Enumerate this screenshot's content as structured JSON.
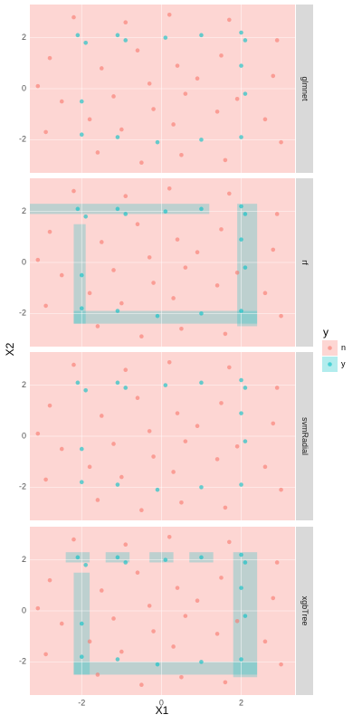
{
  "chart_data": [
    {
      "type": "scatter",
      "title": "glmnet",
      "xlim": [
        -3.3,
        3.35
      ],
      "ylim": [
        -3.3,
        3.3
      ],
      "xticks": [
        -2,
        0,
        2
      ],
      "yticks": [
        -2,
        0,
        2
      ],
      "grid": true,
      "series": [
        {
          "name": "n",
          "color": "#F8766D",
          "x": [
            -2.8,
            -1.5,
            -0.6,
            0.4,
            1.5,
            2.8,
            -2.5,
            -1.2,
            -0.2,
            0.6,
            1.4,
            2.6,
            -2.9,
            -1.6,
            -0.5,
            0.5,
            1.6,
            3.0,
            -0.9,
            0.2,
            1.7,
            -2.2,
            -0.3,
            0.9,
            -1.8,
            1.9,
            -1.0,
            0.3,
            2.9,
            -3.1
          ],
          "values": [
            1.2,
            0.8,
            1.5,
            0.9,
            1.3,
            0.5,
            -0.5,
            -0.3,
            -0.8,
            -0.2,
            -0.9,
            -1.2,
            -1.7,
            -2.5,
            -2.9,
            -2.6,
            -2.8,
            -2.1,
            2.6,
            2.9,
            2.7,
            2.8,
            0.2,
            0.4,
            -1.2,
            -0.4,
            -1.6,
            -1.4,
            1.9,
            0.1
          ]
        },
        {
          "name": "y",
          "color": "#00BFC4",
          "x": [
            -2.1,
            -1.9,
            -1.1,
            -0.9,
            0.1,
            1.0,
            2.0,
            2.1,
            2.0,
            2.1,
            2.0,
            1.0,
            -0.1,
            -1.1,
            -2.0,
            -2.0
          ],
          "values": [
            2.1,
            1.8,
            2.1,
            1.9,
            2.0,
            2.1,
            2.2,
            1.9,
            0.9,
            -0.2,
            -1.9,
            -2.0,
            -2.1,
            -1.9,
            -1.8,
            -0.5
          ]
        }
      ]
    },
    {
      "type": "scatter",
      "title": "rf",
      "xlim": [
        -3.3,
        3.35
      ],
      "ylim": [
        -3.3,
        3.3
      ],
      "xticks": [
        -2,
        0,
        2
      ],
      "yticks": [
        -2,
        0,
        2
      ],
      "grid": true,
      "regions": [
        {
          "x": [
            -3.3,
            1.2
          ],
          "y": [
            1.9,
            2.3
          ]
        },
        {
          "x": [
            1.9,
            2.4
          ],
          "y": [
            -2.5,
            2.3
          ]
        },
        {
          "x": [
            -2.2,
            2.4
          ],
          "y": [
            -2.4,
            -1.9
          ]
        },
        {
          "x": [
            -2.2,
            -1.9
          ],
          "y": [
            -2.4,
            1.5
          ]
        }
      ],
      "series": [
        {
          "name": "n",
          "color": "#F8766D",
          "x": [
            -2.8,
            -1.5,
            -0.6,
            0.4,
            1.5,
            2.8,
            -2.5,
            -1.2,
            -0.2,
            0.6,
            1.4,
            2.6,
            -2.9,
            -1.6,
            -0.5,
            0.5,
            1.6,
            3.0,
            -0.9,
            0.2,
            1.7,
            -2.2,
            -0.3,
            0.9,
            -1.8,
            1.9,
            -1.0,
            0.3,
            2.9,
            -3.1
          ],
          "values": [
            1.2,
            0.8,
            1.5,
            0.9,
            1.3,
            0.5,
            -0.5,
            -0.3,
            -0.8,
            -0.2,
            -0.9,
            -1.2,
            -1.7,
            -2.5,
            -2.9,
            -2.6,
            -2.8,
            -2.1,
            2.6,
            2.9,
            2.7,
            2.8,
            0.2,
            0.4,
            -1.2,
            -0.4,
            -1.6,
            -1.4,
            1.9,
            0.1
          ]
        },
        {
          "name": "y",
          "color": "#00BFC4",
          "x": [
            -2.1,
            -1.9,
            -1.1,
            -0.9,
            0.1,
            1.0,
            2.0,
            2.1,
            2.0,
            2.1,
            2.0,
            1.0,
            -0.1,
            -1.1,
            -2.0,
            -2.0
          ],
          "values": [
            2.1,
            1.8,
            2.1,
            1.9,
            2.0,
            2.1,
            2.2,
            1.9,
            0.9,
            -0.2,
            -1.9,
            -2.0,
            -2.1,
            -1.9,
            -1.8,
            -0.5
          ]
        }
      ]
    },
    {
      "type": "scatter",
      "title": "svmRadial",
      "xlim": [
        -3.3,
        3.35
      ],
      "ylim": [
        -3.3,
        3.3
      ],
      "xticks": [
        -2,
        0,
        2
      ],
      "yticks": [
        -2,
        0,
        2
      ],
      "grid": true,
      "series": [
        {
          "name": "n",
          "color": "#F8766D",
          "x": [
            -2.8,
            -1.5,
            -0.6,
            0.4,
            1.5,
            2.8,
            -2.5,
            -1.2,
            -0.2,
            0.6,
            1.4,
            2.6,
            -2.9,
            -1.6,
            -0.5,
            0.5,
            1.6,
            3.0,
            -0.9,
            0.2,
            1.7,
            -2.2,
            -0.3,
            0.9,
            -1.8,
            1.9,
            -1.0,
            0.3,
            2.9,
            -3.1
          ],
          "values": [
            1.2,
            0.8,
            1.5,
            0.9,
            1.3,
            0.5,
            -0.5,
            -0.3,
            -0.8,
            -0.2,
            -0.9,
            -1.2,
            -1.7,
            -2.5,
            -2.9,
            -2.6,
            -2.8,
            -2.1,
            2.6,
            2.9,
            2.7,
            2.8,
            0.2,
            0.4,
            -1.2,
            -0.4,
            -1.6,
            -1.4,
            1.9,
            0.1
          ]
        },
        {
          "name": "y",
          "color": "#00BFC4",
          "x": [
            -2.1,
            -1.9,
            -1.1,
            -0.9,
            0.1,
            1.0,
            2.0,
            2.1,
            2.0,
            2.1,
            2.0,
            1.0,
            -0.1,
            -1.1,
            -2.0,
            -2.0
          ],
          "values": [
            2.1,
            1.8,
            2.1,
            1.9,
            2.0,
            2.1,
            2.2,
            1.9,
            0.9,
            -0.2,
            -1.9,
            -2.0,
            -2.1,
            -1.9,
            -1.8,
            -0.5
          ]
        }
      ]
    },
    {
      "type": "scatter",
      "title": "xgbTree",
      "xlim": [
        -3.3,
        3.35
      ],
      "ylim": [
        -3.3,
        3.3
      ],
      "xticks": [
        -2,
        0,
        2
      ],
      "yticks": [
        -2,
        0,
        2
      ],
      "grid": true,
      "regions": [
        {
          "x": [
            -2.4,
            -1.8
          ],
          "y": [
            1.9,
            2.3
          ]
        },
        {
          "x": [
            -1.4,
            -0.8
          ],
          "y": [
            1.9,
            2.3
          ]
        },
        {
          "x": [
            -0.3,
            0.3
          ],
          "y": [
            1.9,
            2.3
          ]
        },
        {
          "x": [
            0.7,
            1.3
          ],
          "y": [
            1.9,
            2.3
          ]
        },
        {
          "x": [
            1.8,
            2.4
          ],
          "y": [
            -2.6,
            2.3
          ]
        },
        {
          "x": [
            -2.2,
            2.4
          ],
          "y": [
            -2.5,
            -2.0
          ]
        },
        {
          "x": [
            -2.2,
            -1.8
          ],
          "y": [
            -2.5,
            1.5
          ]
        }
      ],
      "series": [
        {
          "name": "n",
          "color": "#F8766D",
          "x": [
            -2.8,
            -1.5,
            -0.6,
            0.4,
            1.5,
            2.8,
            -2.5,
            -1.2,
            -0.2,
            0.6,
            1.4,
            2.6,
            -2.9,
            -1.6,
            -0.5,
            0.5,
            1.6,
            3.0,
            -0.9,
            0.2,
            1.7,
            -2.2,
            -0.3,
            0.9,
            -1.8,
            1.9,
            -1.0,
            0.3,
            2.9,
            -3.1
          ],
          "values": [
            1.2,
            0.8,
            1.5,
            0.9,
            1.3,
            0.5,
            -0.5,
            -0.3,
            -0.8,
            -0.2,
            -0.9,
            -1.2,
            -1.7,
            -2.5,
            -2.9,
            -2.6,
            -2.8,
            -2.1,
            2.6,
            2.9,
            2.7,
            2.8,
            0.2,
            0.4,
            -1.2,
            -0.4,
            -1.6,
            -1.4,
            1.9,
            0.1
          ]
        },
        {
          "name": "y",
          "color": "#00BFC4",
          "x": [
            -2.1,
            -1.9,
            -1.1,
            -0.9,
            0.1,
            1.0,
            2.0,
            2.1,
            2.0,
            2.1,
            2.0,
            1.0,
            -0.1,
            -1.1,
            -2.0,
            -2.0
          ],
          "values": [
            2.1,
            1.8,
            2.1,
            1.9,
            2.0,
            2.1,
            2.2,
            1.9,
            0.9,
            -0.2,
            -1.9,
            -2.0,
            -2.1,
            -1.9,
            -1.8,
            -0.5
          ]
        }
      ]
    }
  ],
  "x_label": "X1",
  "y_label": "X2",
  "legend_title": "y"
}
